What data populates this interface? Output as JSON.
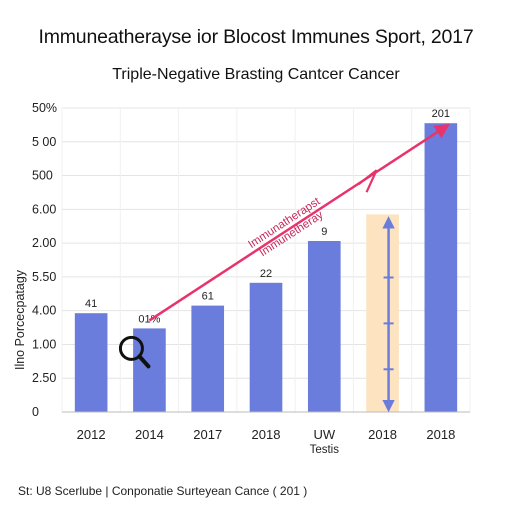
{
  "chart_data": {
    "type": "bar",
    "title": "Immuneatherayse ior Blocost Immunes Sport, 2017",
    "subtitle": "Triple-Negative Brasting Cantcer Cancer",
    "ylabel": "Ilno Porcecpatagy",
    "yticks": [
      "50%",
      "5 00",
      "500",
      "6.00",
      "2.00",
      "5.50",
      "4.00",
      "1.00",
      "2.50",
      "0"
    ],
    "categories": [
      "2012",
      "2014",
      "2017",
      "2018",
      "UW\nTestis",
      "2018",
      "2018"
    ],
    "values": [
      2.6,
      2.2,
      2.8,
      3.4,
      4.5,
      5.2,
      7.6
    ],
    "data_labels": [
      "41",
      "01%",
      "61",
      "22",
      "9",
      "",
      "201"
    ],
    "highlight_index": 5,
    "annotation_text": "Immunatherapst Immunetheray",
    "footer": "St: U8 Scerlube | Conponatie Surteyean Cance ( 201 )",
    "colors": {
      "bar": "#6b7ddc",
      "highlight_bar": "#fde3bf",
      "arrow": "#e8336d",
      "range_arrow": "#6b7ddc",
      "grid": "#e4e4e4"
    }
  }
}
